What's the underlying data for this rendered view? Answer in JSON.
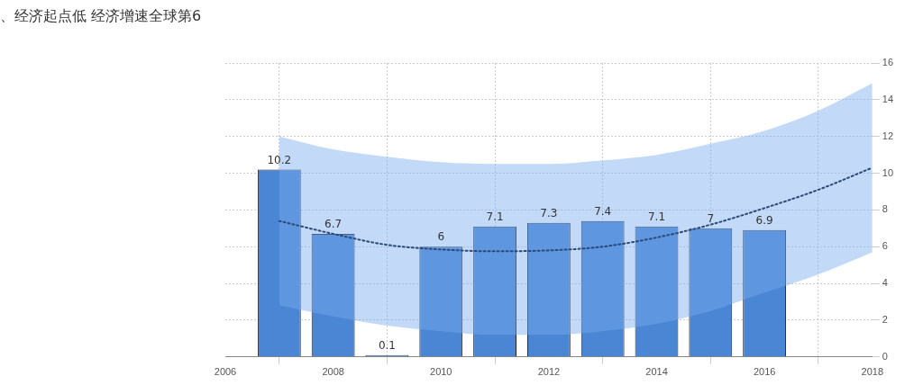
{
  "chart_data": {
    "type": "bar",
    "title": "、经济起点低 经济增速全球第6",
    "xlim": [
      2006,
      2018
    ],
    "xticks": [
      2006,
      2008,
      2010,
      2012,
      2014,
      2016,
      2018
    ],
    "ylim": [
      0,
      16
    ],
    "yticks": [
      0,
      2,
      4,
      6,
      8,
      10,
      12,
      14,
      16
    ],
    "grid": true,
    "series": [
      {
        "color": "#4a86d4",
        "x": [
          2007,
          2008,
          2009,
          2010,
          2011,
          2012,
          2013,
          2014,
          2015,
          2016
        ],
        "values": [
          10.2,
          6.7,
          0.1,
          6,
          7.1,
          7.3,
          7.4,
          7.1,
          7,
          6.9
        ],
        "value_labels": [
          "10.2",
          "6.7",
          "0.1",
          "6",
          "7.1",
          "7.3",
          "7.4",
          "7.1",
          "7",
          "6.9"
        ]
      },
      {
        "type": "line",
        "color": "#2b4a78",
        "line_style": "dotted",
        "marker": "none",
        "x": [
          2007,
          2008,
          2009,
          2010,
          2011,
          2012,
          2013,
          2014,
          2015,
          2016,
          2017,
          2018
        ],
        "values": [
          7.4,
          6.7,
          6.1,
          5.85,
          5.75,
          5.8,
          6,
          6.5,
          7.2,
          8.1,
          9.1,
          10.3
        ],
        "lower": [
          2.8,
          2.2,
          1.7,
          1.4,
          1.2,
          1.2,
          1.4,
          1.8,
          2.5,
          3.5,
          4.5,
          5.7
        ],
        "upper": [
          12,
          11.3,
          10.9,
          10.6,
          10.5,
          10.5,
          10.7,
          11,
          11.6,
          12.3,
          13.4,
          14.9
        ]
      }
    ]
  }
}
